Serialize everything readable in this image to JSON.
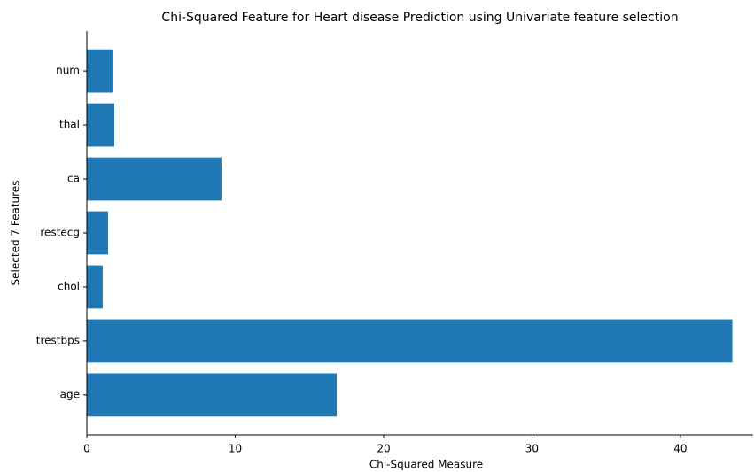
{
  "chart_data": {
    "type": "barh",
    "title": "Chi-Squared Feature for Heart disease Prediction using Univariate feature selection",
    "xlabel": "Chi-Squared Measure",
    "ylabel": "Selected 7 Features",
    "categories": [
      "age",
      "trestbps",
      "chol",
      "restecg",
      "ca",
      "thal",
      "num"
    ],
    "values": [
      16.84,
      43.5,
      1.07,
      1.43,
      9.07,
      1.85,
      1.73
    ],
    "color": "#1f77b4",
    "xlim": [
      0,
      44.9
    ],
    "xticks": [
      0,
      10,
      20,
      30,
      40
    ]
  }
}
